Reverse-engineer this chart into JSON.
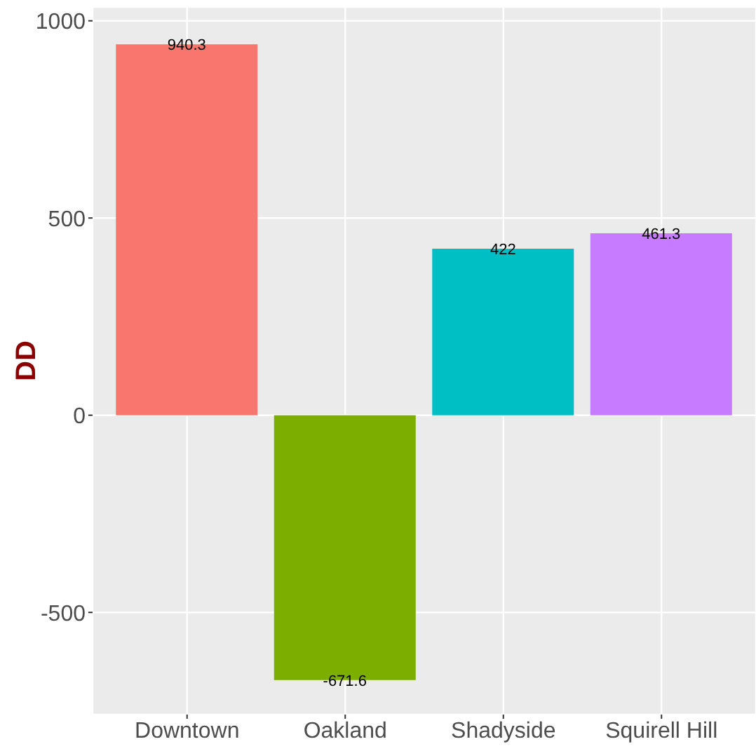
{
  "chart_data": {
    "type": "bar",
    "ylabel": "DD",
    "categories": [
      "Downtown",
      "Oakland",
      "Shadyside",
      "Squirell Hill"
    ],
    "values": [
      940.3,
      -671.6,
      422,
      461.3
    ],
    "colors": [
      "#f8766d",
      "#7cae00",
      "#00bfc4",
      "#c77cff"
    ],
    "ylim": [
      -759,
      1035
    ],
    "yticks": [
      -500,
      0,
      500,
      1000
    ],
    "grid": true,
    "data_labels": true
  }
}
